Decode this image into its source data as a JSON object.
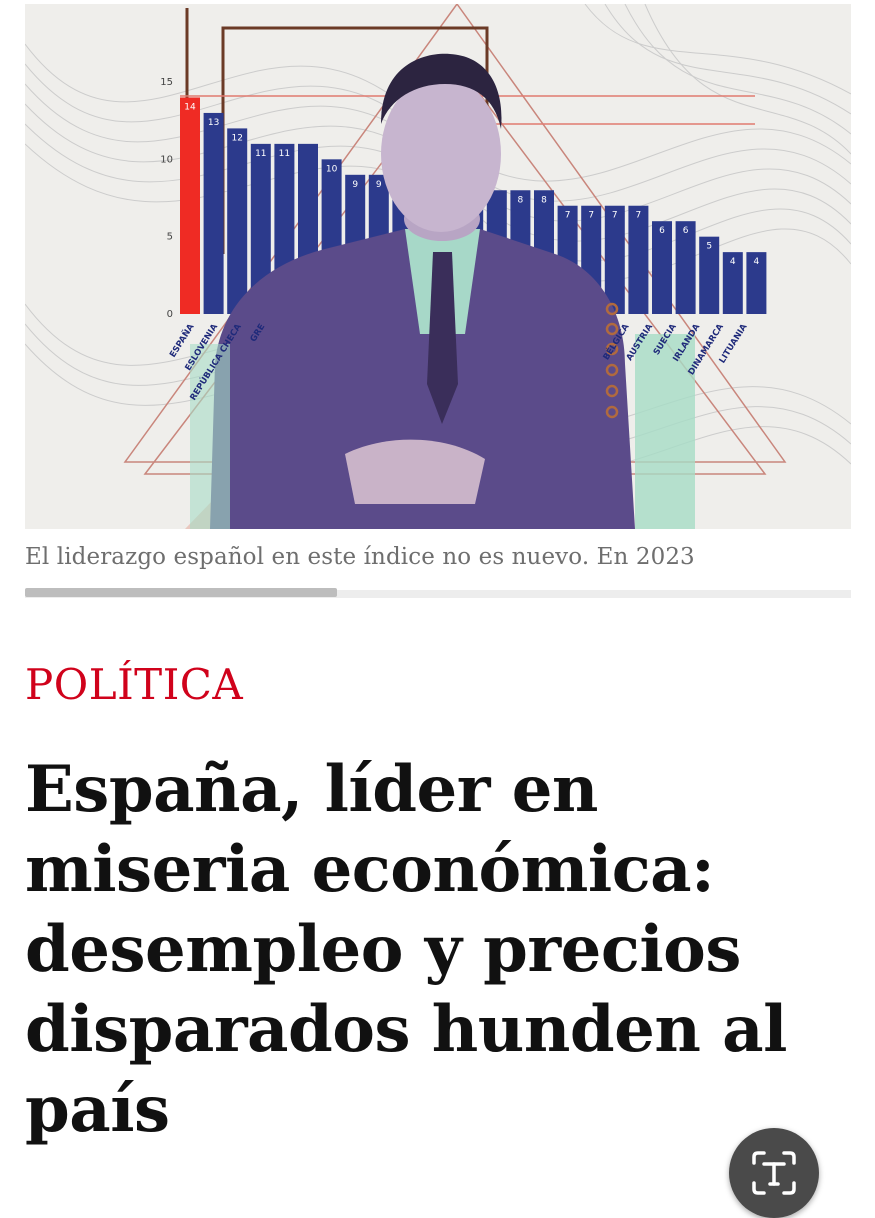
{
  "article_image": {
    "chart_data": {
      "type": "bar",
      "y_ticks": [
        "0",
        "5",
        "10",
        "15"
      ],
      "ylim": [
        0,
        15
      ],
      "values": [
        14,
        13,
        12,
        11,
        11,
        11,
        10,
        9,
        9,
        8,
        8,
        8,
        8,
        8,
        8,
        8,
        7,
        7,
        7,
        7,
        6,
        6,
        5,
        4,
        4
      ],
      "value_labels": [
        "14",
        "13",
        "12",
        "11",
        "11",
        "",
        "10",
        "9",
        "9",
        "",
        "",
        "",
        "",
        "",
        "8",
        "8",
        "7",
        "7",
        "7",
        "7",
        "6",
        "6",
        "5",
        "4",
        "4"
      ],
      "highlight_index": 0,
      "highlight_color": "#ef2b24",
      "bar_color": "#2c3a8c",
      "left_labels": [
        "ESPAÑA",
        "ESLOVENIA",
        "REPÚBLICA CHECA",
        "GRE"
      ],
      "right_labels": [
        "BÉLGICA",
        "AUSTRIA",
        "SUECIA",
        "IRLANDA",
        "DINAMARCA",
        "LITUANIA"
      ]
    }
  },
  "caption": "El liderazgo español en este índice no es nuevo. En 2023",
  "section_label": "POLÍTICA",
  "headline": "España, líder en miseria económica: desempleo y precios disparados hunden al país",
  "translate_button": {
    "icon": "text-recognition-icon"
  }
}
